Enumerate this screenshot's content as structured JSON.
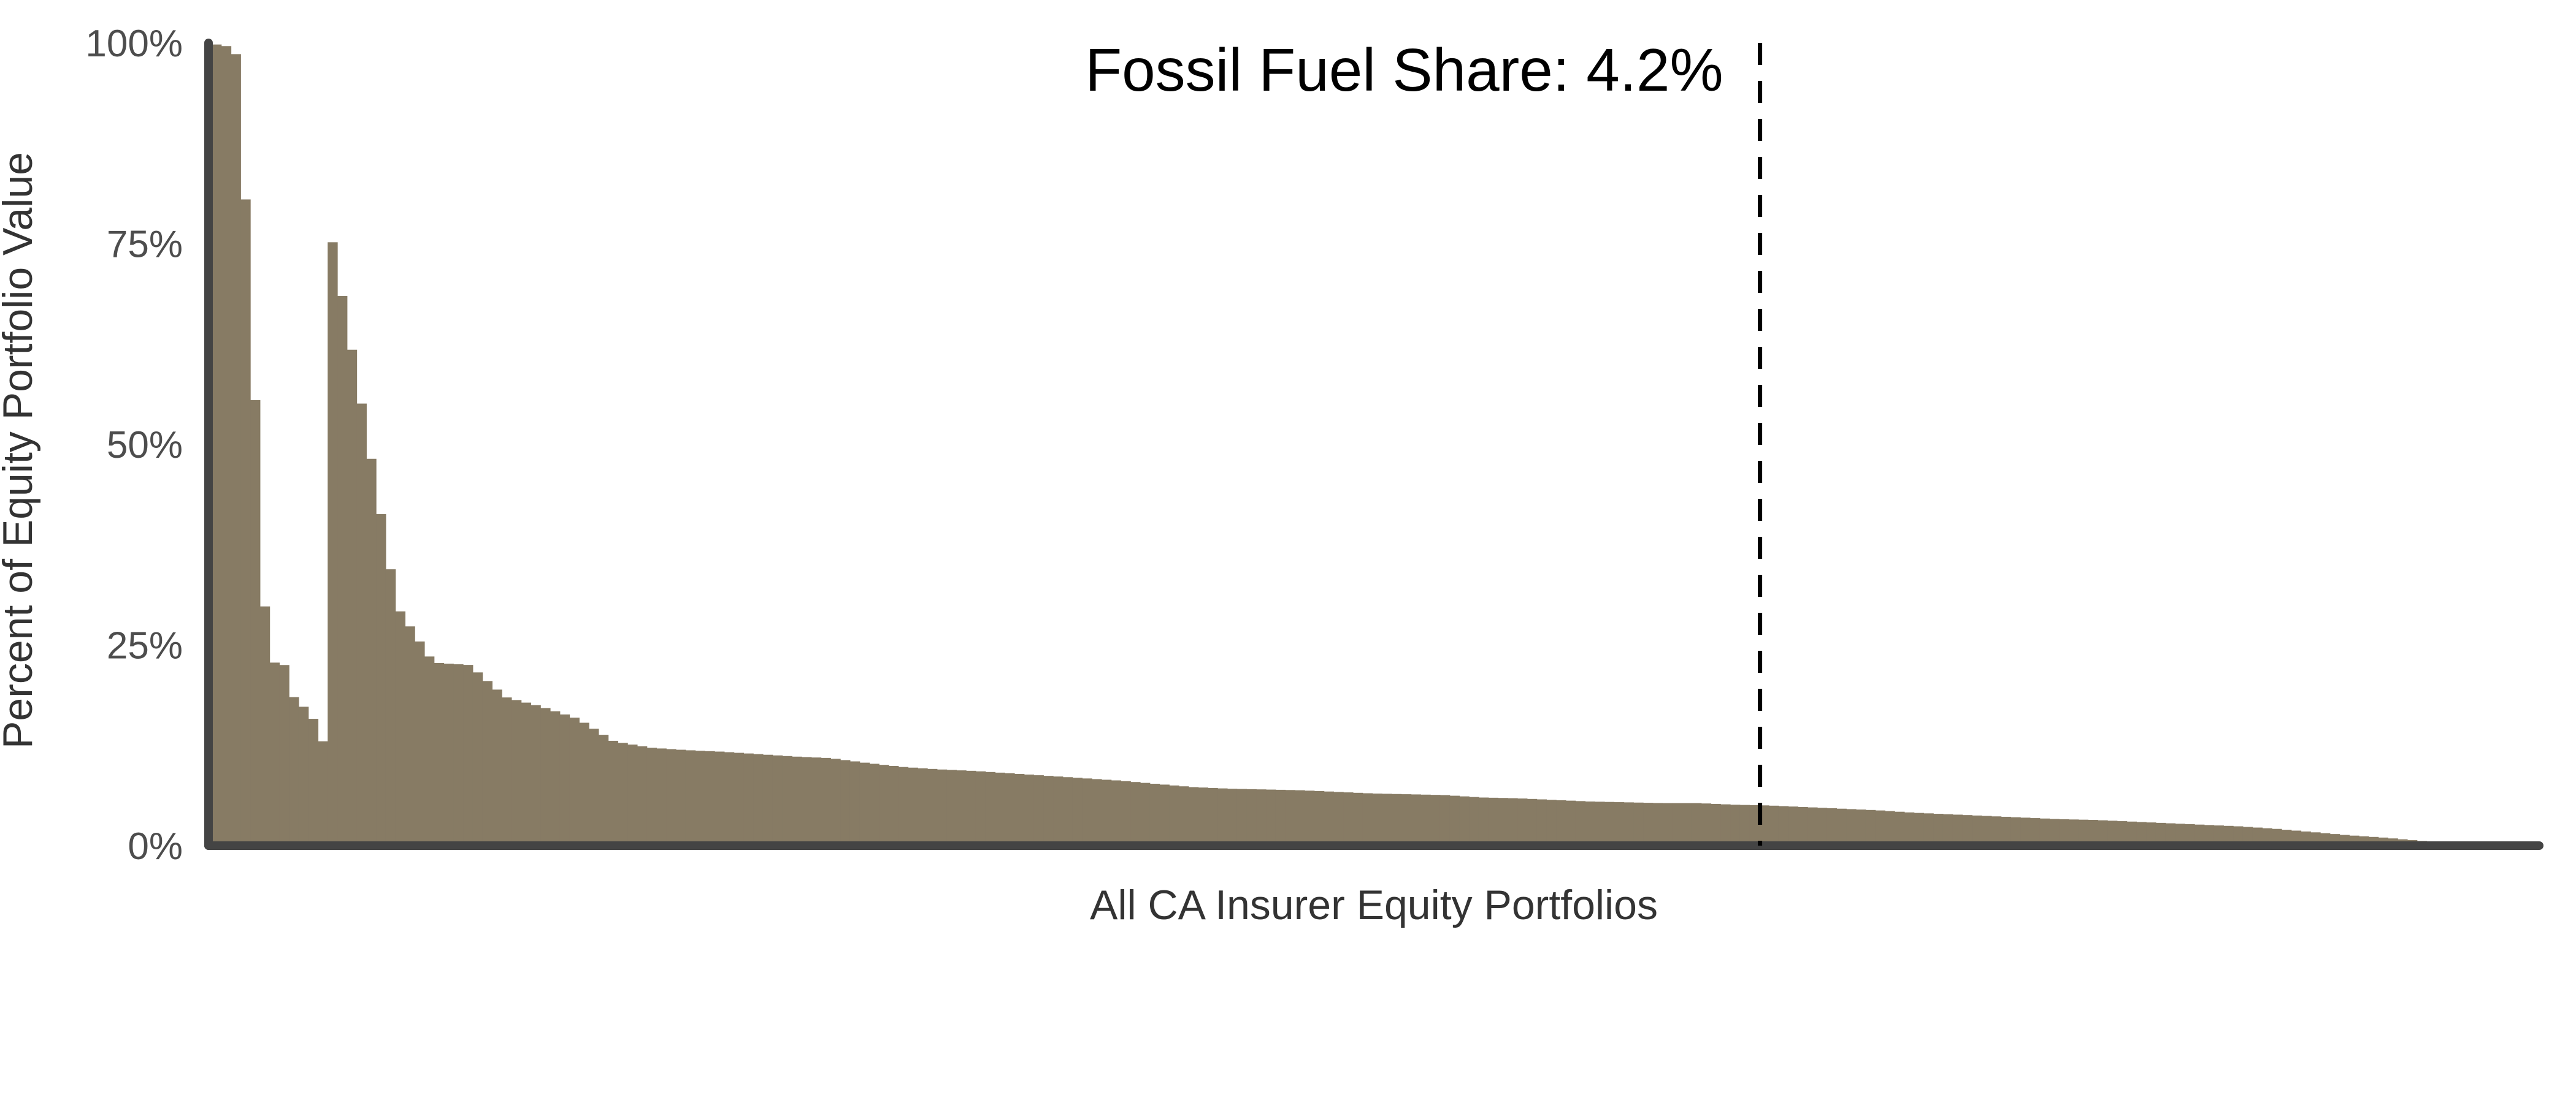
{
  "chart_data": {
    "type": "bar",
    "title": "",
    "xlabel": "All CA Insurer Equity Portfolios",
    "ylabel": "Percent of Equity Portfolio Value",
    "ylim": [
      0,
      100
    ],
    "y_ticks": [
      "0%",
      "25%",
      "50%",
      "75%",
      "100%"
    ],
    "y_tick_values": [
      0,
      25,
      50,
      75,
      100
    ],
    "x_tick_labels": [],
    "grid": false,
    "legend": "none",
    "bar_color": "#877b64",
    "axis_color": "#444444",
    "annotation": {
      "text": "Fossil Fuel Share: 4.2%",
      "line_style": "dashed",
      "line_x_fraction": 0.667
    },
    "bar_count": 240,
    "values_sorted_desc": [
      99.8,
      99.6,
      98.6,
      80.5,
      55.5,
      29.8,
      22.8,
      22.5,
      18.5,
      17.3,
      15.8,
      13.0,
      12.2,
      11.9,
      11.7,
      11.4,
      11.1,
      10.9,
      10.3,
      9.8,
      9.5,
      9.3,
      9.0,
      8.7,
      8.4,
      8.1,
      7.7,
      7.3,
      7.1,
      7.0,
      6.9,
      6.7,
      6.5,
      6.4,
      6.3,
      6.0,
      5.9,
      5.7,
      5.5,
      5.4,
      5.3,
      5.3,
      5.1,
      5.0,
      4.8,
      4.6,
      4.4,
      4.1,
      3.9,
      3.7,
      3.5,
      3.3,
      3.2,
      3.0,
      2.8,
      2.6,
      2.4,
      2.1,
      1.7,
      1.3,
      1.0,
      0.6,
      0.2,
      0.0,
      0.0
    ]
  }
}
